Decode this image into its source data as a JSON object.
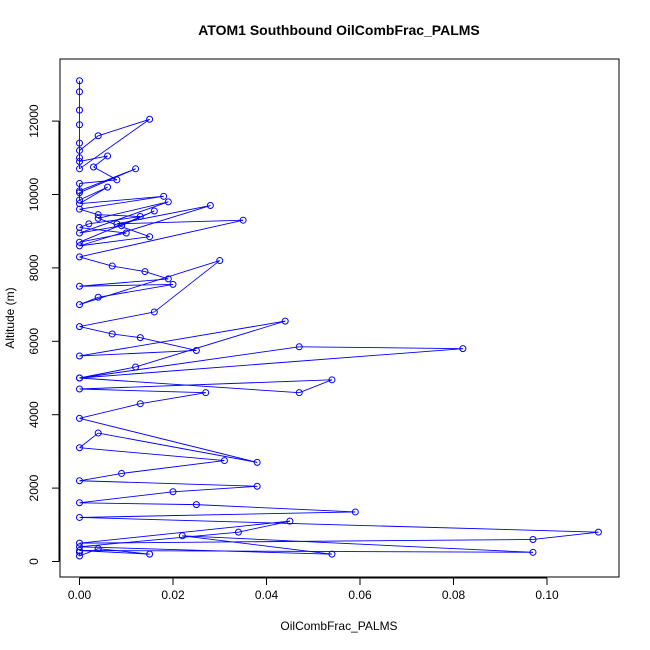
{
  "chart_data": {
    "type": "scatter",
    "title": "ATOM1 Southbound OilCombFrac_PALMS",
    "xlabel": "OilCombFrac_PALMS",
    "ylabel": "Altitude (m)",
    "xlim": [
      0,
      0.114
    ],
    "ylim": [
      0,
      13500
    ],
    "x_ticks": [
      0.0,
      0.02,
      0.04,
      0.06,
      0.08,
      0.1
    ],
    "x_tick_labels": [
      "0.00",
      "0.02",
      "0.04",
      "0.06",
      "0.08",
      "0.10"
    ],
    "y_ticks": [
      0,
      2000,
      4000,
      6000,
      8000,
      10000,
      12000
    ],
    "y_tick_labels": [
      "0",
      "2000",
      "4000",
      "6000",
      "8000",
      "10000",
      "12000"
    ],
    "grid": false,
    "style": "points connected by lines",
    "series": [
      {
        "color": "#0000ff",
        "x": [
          0.0,
          0.0,
          0.0,
          0.0,
          0.0,
          0.0,
          0.0,
          0.015,
          0.004,
          0.0,
          0.0,
          0.006,
          0.003,
          0.008,
          0.0,
          0.0,
          0.012,
          0.0,
          0.0,
          0.006,
          0.0,
          0.018,
          0.0,
          0.004,
          0.013,
          0.002,
          0.0,
          0.01,
          0.0,
          0.016,
          0.009,
          0.0,
          0.019,
          0.004,
          0.015,
          0.0,
          0.028,
          0.008,
          0.035,
          0.0,
          0.007,
          0.014,
          0.019,
          0.0,
          0.02,
          0.004,
          0.0,
          0.03,
          0.016,
          0.0,
          0.007,
          0.013,
          0.025,
          0.0,
          0.044,
          0.012,
          0.0,
          0.047,
          0.082,
          0.0,
          0.047,
          0.054,
          0.0,
          0.027,
          0.013,
          0.0,
          0.038,
          0.004,
          0.0,
          0.031,
          0.009,
          0.0,
          0.038,
          0.02,
          0.0,
          0.025,
          0.059,
          0.0,
          0.111,
          0.097,
          0.0,
          0.045,
          0.034,
          0.0,
          0.054,
          0.022,
          0.097,
          0.0,
          0.015,
          0.004,
          0.0,
          0.0
        ],
        "y": [
          13100,
          12800,
          12300,
          11900,
          11400,
          11000,
          10700,
          12050,
          11600,
          11200,
          10900,
          11050,
          10750,
          10400,
          10300,
          10100,
          10700,
          10050,
          9850,
          10200,
          9750,
          9950,
          9600,
          9450,
          9400,
          9200,
          9100,
          8950,
          8700,
          9550,
          9150,
          8950,
          9800,
          9350,
          8850,
          8600,
          9700,
          9200,
          9300,
          8300,
          8050,
          7900,
          7700,
          7500,
          7550,
          7200,
          7000,
          8200,
          6800,
          6400,
          6200,
          6100,
          5750,
          5600,
          6550,
          5300,
          5000,
          5850,
          5800,
          5000,
          4600,
          4950,
          4700,
          4600,
          4300,
          3900,
          2700,
          3500,
          3100,
          2750,
          2400,
          2200,
          2050,
          1900,
          1600,
          1550,
          1350,
          1200,
          800,
          600,
          500,
          1100,
          800,
          400,
          200,
          700,
          250,
          300,
          200,
          350,
          150,
          250
        ]
      }
    ]
  }
}
